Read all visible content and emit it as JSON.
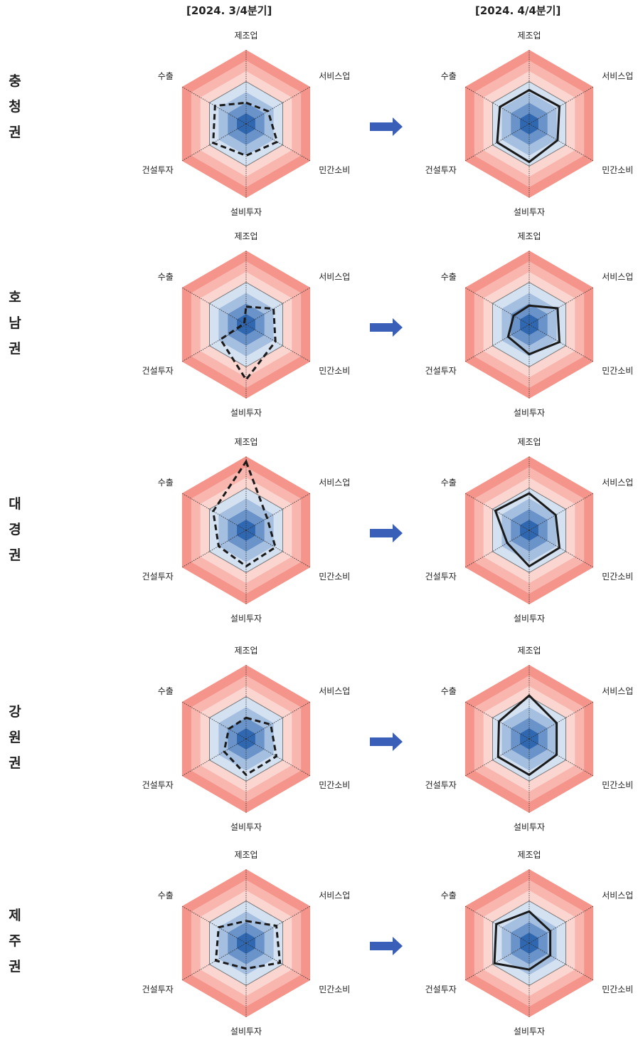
{
  "headers": {
    "left": "[2024. 3/4분기]",
    "right": "[2024. 4/4분기]"
  },
  "axes": [
    "제조업",
    "서비스업",
    "민간소비",
    "설비투자",
    "건설투자",
    "수출"
  ],
  "regions": [
    "충청권",
    "호남권",
    "대경권",
    "강원권",
    "제주권"
  ],
  "region_glyphs": [
    [
      "충",
      "청",
      "권"
    ],
    [
      "호",
      "남",
      "권"
    ],
    [
      "대",
      "경",
      "권"
    ],
    [
      "강",
      "원",
      "권"
    ],
    [
      "제",
      "주",
      "권"
    ]
  ],
  "scale": {
    "levels": 7,
    "reference_level": 4,
    "max_level": 7
  },
  "colors": {
    "blue_bands": [
      "#2f67b1",
      "#6a93c9",
      "#a5bfe0",
      "#d4e1f1"
    ],
    "red_bands": [
      "#fbd6d1",
      "#f8b6ae",
      "#f4948a"
    ],
    "reference_ring": "#7a7a7a",
    "series_line": "#1a1a1a",
    "arrow": "#3a5fb8"
  },
  "chart_data": [
    {
      "type": "radar",
      "region": "충청권",
      "series": [
        {
          "name": "2024. 3/4분기",
          "style": "dashed",
          "values": [
            2.0,
            2.4,
            3.4,
            3.0,
            3.6,
            3.4
          ]
        },
        {
          "name": "2024. 4/4분기",
          "style": "solid",
          "values": [
            3.2,
            3.3,
            3.1,
            3.6,
            3.5,
            3.2
          ]
        }
      ]
    },
    {
      "type": "radar",
      "region": "호남권",
      "series": [
        {
          "name": "2024. 3/4분기",
          "style": "dashed",
          "values": [
            1.7,
            3.0,
            3.2,
            5.2,
            2.8,
            0.2
          ]
        },
        {
          "name": "2024. 4/4분기",
          "style": "solid",
          "values": [
            1.8,
            3.1,
            3.3,
            2.8,
            2.3,
            1.7
          ]
        }
      ]
    },
    {
      "type": "radar",
      "region": "대경권",
      "series": [
        {
          "name": "2024. 3/4분기",
          "style": "dashed",
          "values": [
            6.5,
            2.3,
            3.2,
            3.4,
            3.0,
            3.6
          ]
        },
        {
          "name": "2024. 4/4분기",
          "style": "solid",
          "values": [
            3.5,
            2.9,
            3.3,
            3.4,
            2.4,
            3.7
          ]
        }
      ]
    },
    {
      "type": "radar",
      "region": "강원권",
      "series": [
        {
          "name": "2024. 3/4분기",
          "style": "dashed",
          "values": [
            2.0,
            2.7,
            3.3,
            3.4,
            2.4,
            1.9
          ]
        },
        {
          "name": "2024. 4/4분기",
          "style": "solid",
          "values": [
            4.1,
            3.0,
            3.0,
            3.4,
            3.4,
            3.3
          ]
        }
      ]
    },
    {
      "type": "radar",
      "region": "제주권",
      "series": [
        {
          "name": "2024. 3/4분기",
          "style": "dashed",
          "values": [
            2.1,
            3.3,
            3.7,
            2.4,
            3.3,
            3.0
          ]
        },
        {
          "name": "2024. 4/4분기",
          "style": "solid",
          "values": [
            3.0,
            2.3,
            2.3,
            2.5,
            3.8,
            3.6
          ]
        }
      ]
    }
  ]
}
